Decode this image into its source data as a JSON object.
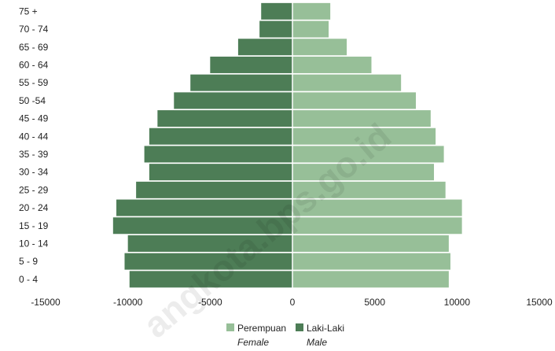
{
  "chart_data": {
    "type": "bar",
    "orientation": "horizontal",
    "layout": "population-pyramid",
    "categories": [
      "75 +",
      "70 - 74",
      "65 - 69",
      "60 - 64",
      "55 - 59",
      "50 -54",
      "45 - 49",
      "40 - 44",
      "35 - 39",
      "30 - 34",
      "25 - 29",
      "20 - 24",
      "15 - 19",
      "10 - 14",
      "5 - 9",
      "0 - 4"
    ],
    "series": [
      {
        "name": "Perempuan",
        "subtitle": "Female",
        "side": "positive",
        "color": "#97bf98",
        "values": [
          2300,
          2200,
          3300,
          4800,
          6600,
          7500,
          8400,
          8700,
          9200,
          8600,
          9300,
          10300,
          10300,
          9500,
          9600,
          9500
        ]
      },
      {
        "name": "Laki-Laki",
        "subtitle": "Male",
        "side": "negative",
        "color": "#4d7d56",
        "values": [
          -1900,
          -2000,
          -3300,
          -5000,
          -6200,
          -7200,
          -8200,
          -8700,
          -9000,
          -8700,
          -9500,
          -10700,
          -10900,
          -10000,
          -10200,
          -9900
        ]
      }
    ],
    "x_ticks": [
      "-15000",
      "-10000",
      "-5000",
      "0",
      "5000",
      "10000",
      "15000"
    ],
    "xlim": [
      -15000,
      15000
    ],
    "grid": false,
    "legend_position": "bottom-center"
  },
  "watermark": "angkota.bps.go.id"
}
